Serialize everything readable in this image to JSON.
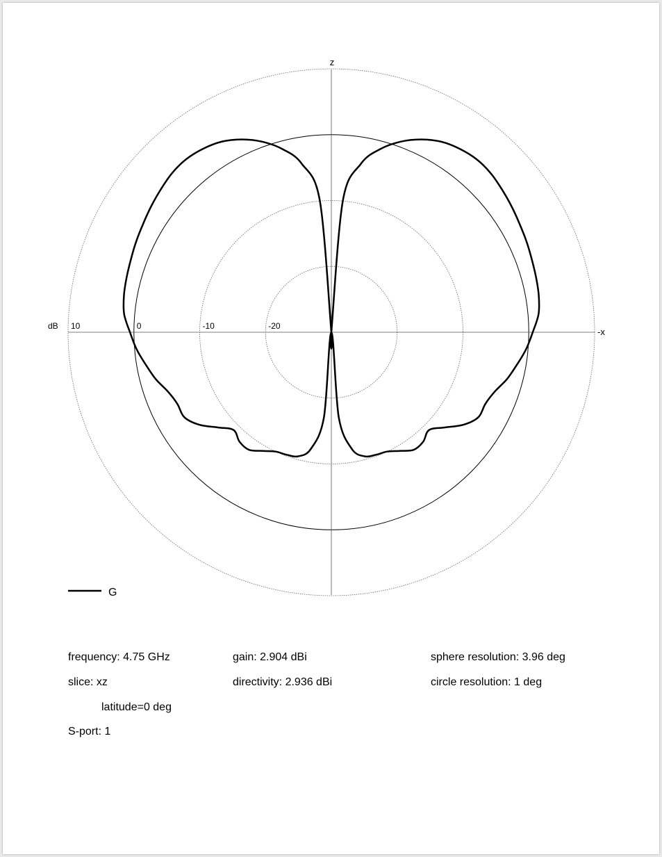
{
  "chart_data": {
    "type": "polar",
    "unit_label": "dB",
    "axis_top_label": "z",
    "axis_right_label": "-x",
    "radial_min_db": -30,
    "radial_max_db": 10,
    "ring_ticks": [
      "10",
      "0",
      "-10",
      "-20"
    ],
    "series": [
      {
        "name": "G",
        "angles_deg": [
          0,
          5,
          10,
          15,
          20,
          25,
          30,
          35,
          40,
          45,
          50,
          55,
          60,
          65,
          70,
          75,
          80,
          85,
          90,
          95,
          100,
          105,
          110,
          115,
          120,
          125,
          130,
          135,
          140,
          145,
          150,
          155,
          160,
          165,
          170,
          175,
          180
        ],
        "gain_db": [
          -30,
          -10,
          -4,
          -1.2,
          0.8,
          2.3,
          3.4,
          4.0,
          4.3,
          4.2,
          3.8,
          3.4,
          3.0,
          2.7,
          2.4,
          2.2,
          2.0,
          1.6,
          0.6,
          -0.3,
          -1.4,
          -2.4,
          -3.6,
          -4.2,
          -4.2,
          -5.5,
          -7.5,
          -9,
          -8.3,
          -8.2,
          -9.2,
          -10,
          -10.2,
          -10.5,
          -12,
          -17,
          -30
        ]
      }
    ]
  },
  "legend": {
    "label": "G"
  },
  "info": {
    "frequency": "frequency: 4.75 GHz",
    "slice": "slice:  xz",
    "latitude": "latitude=0 deg",
    "sport": "S-port: 1",
    "gain": "gain: 2.904 dBi",
    "directivity": "directivity: 2.936 dBi",
    "sphere_resolution": "sphere resolution: 3.96 deg",
    "circle_resolution": "circle resolution: 1 deg"
  }
}
